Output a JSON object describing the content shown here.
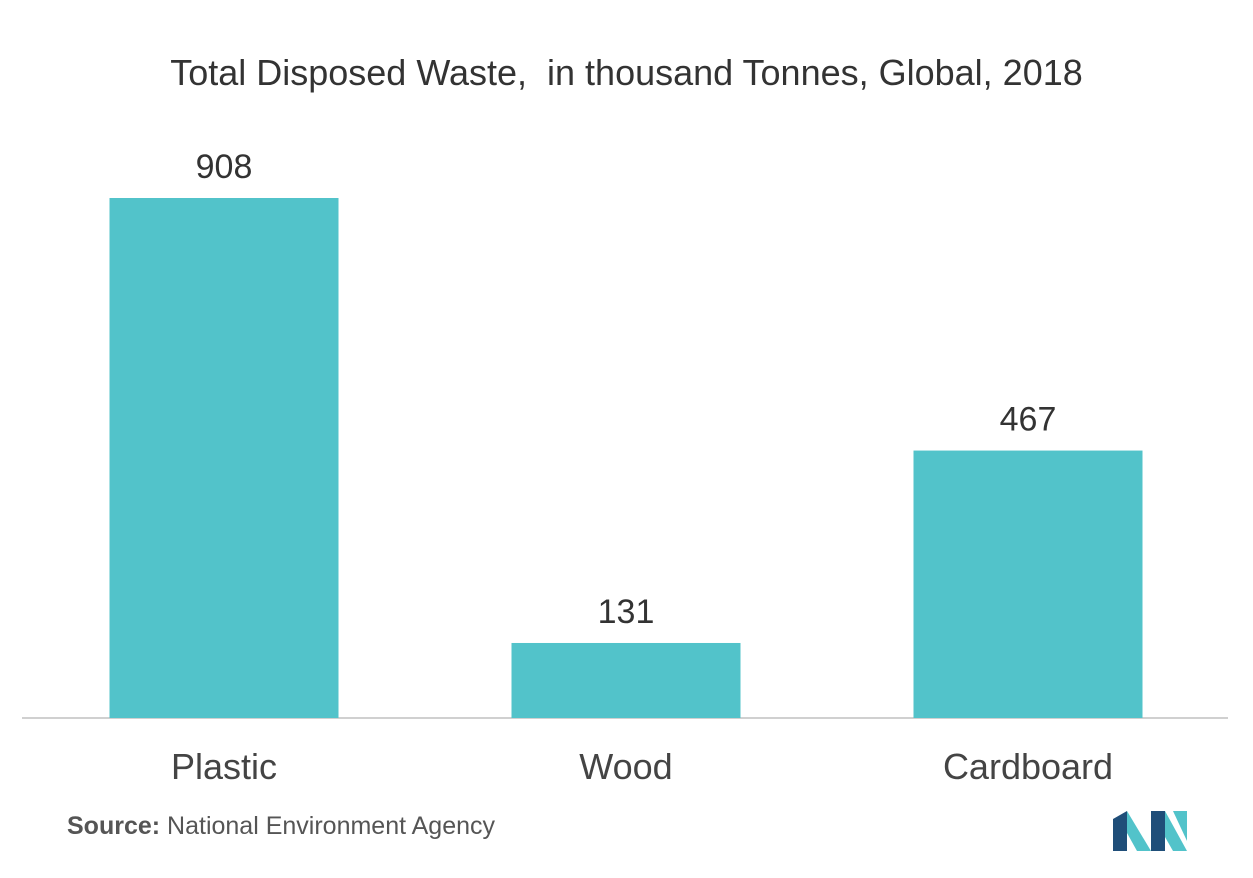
{
  "chart_data": {
    "type": "bar",
    "title": "Total Disposed Waste,  in thousand Tonnes, Global, 2018",
    "categories": [
      "Plastic",
      "Wood",
      "Cardboard"
    ],
    "values": [
      908,
      131,
      467
    ],
    "data_labels": [
      "908",
      "131",
      "467"
    ],
    "xlabel": "",
    "ylabel": "",
    "ylim": [
      0,
      908
    ],
    "grid": false,
    "legend": "none"
  },
  "source": {
    "label": "Source:",
    "text": " National Environment Agency"
  },
  "colors": {
    "bar": "#52c3ca",
    "baseline": "#d0d0d0",
    "logo_dark": "#1f4e79",
    "logo_light": "#52c3ca"
  },
  "logo": {
    "icon": "mordor-intelligence-logo-icon"
  }
}
